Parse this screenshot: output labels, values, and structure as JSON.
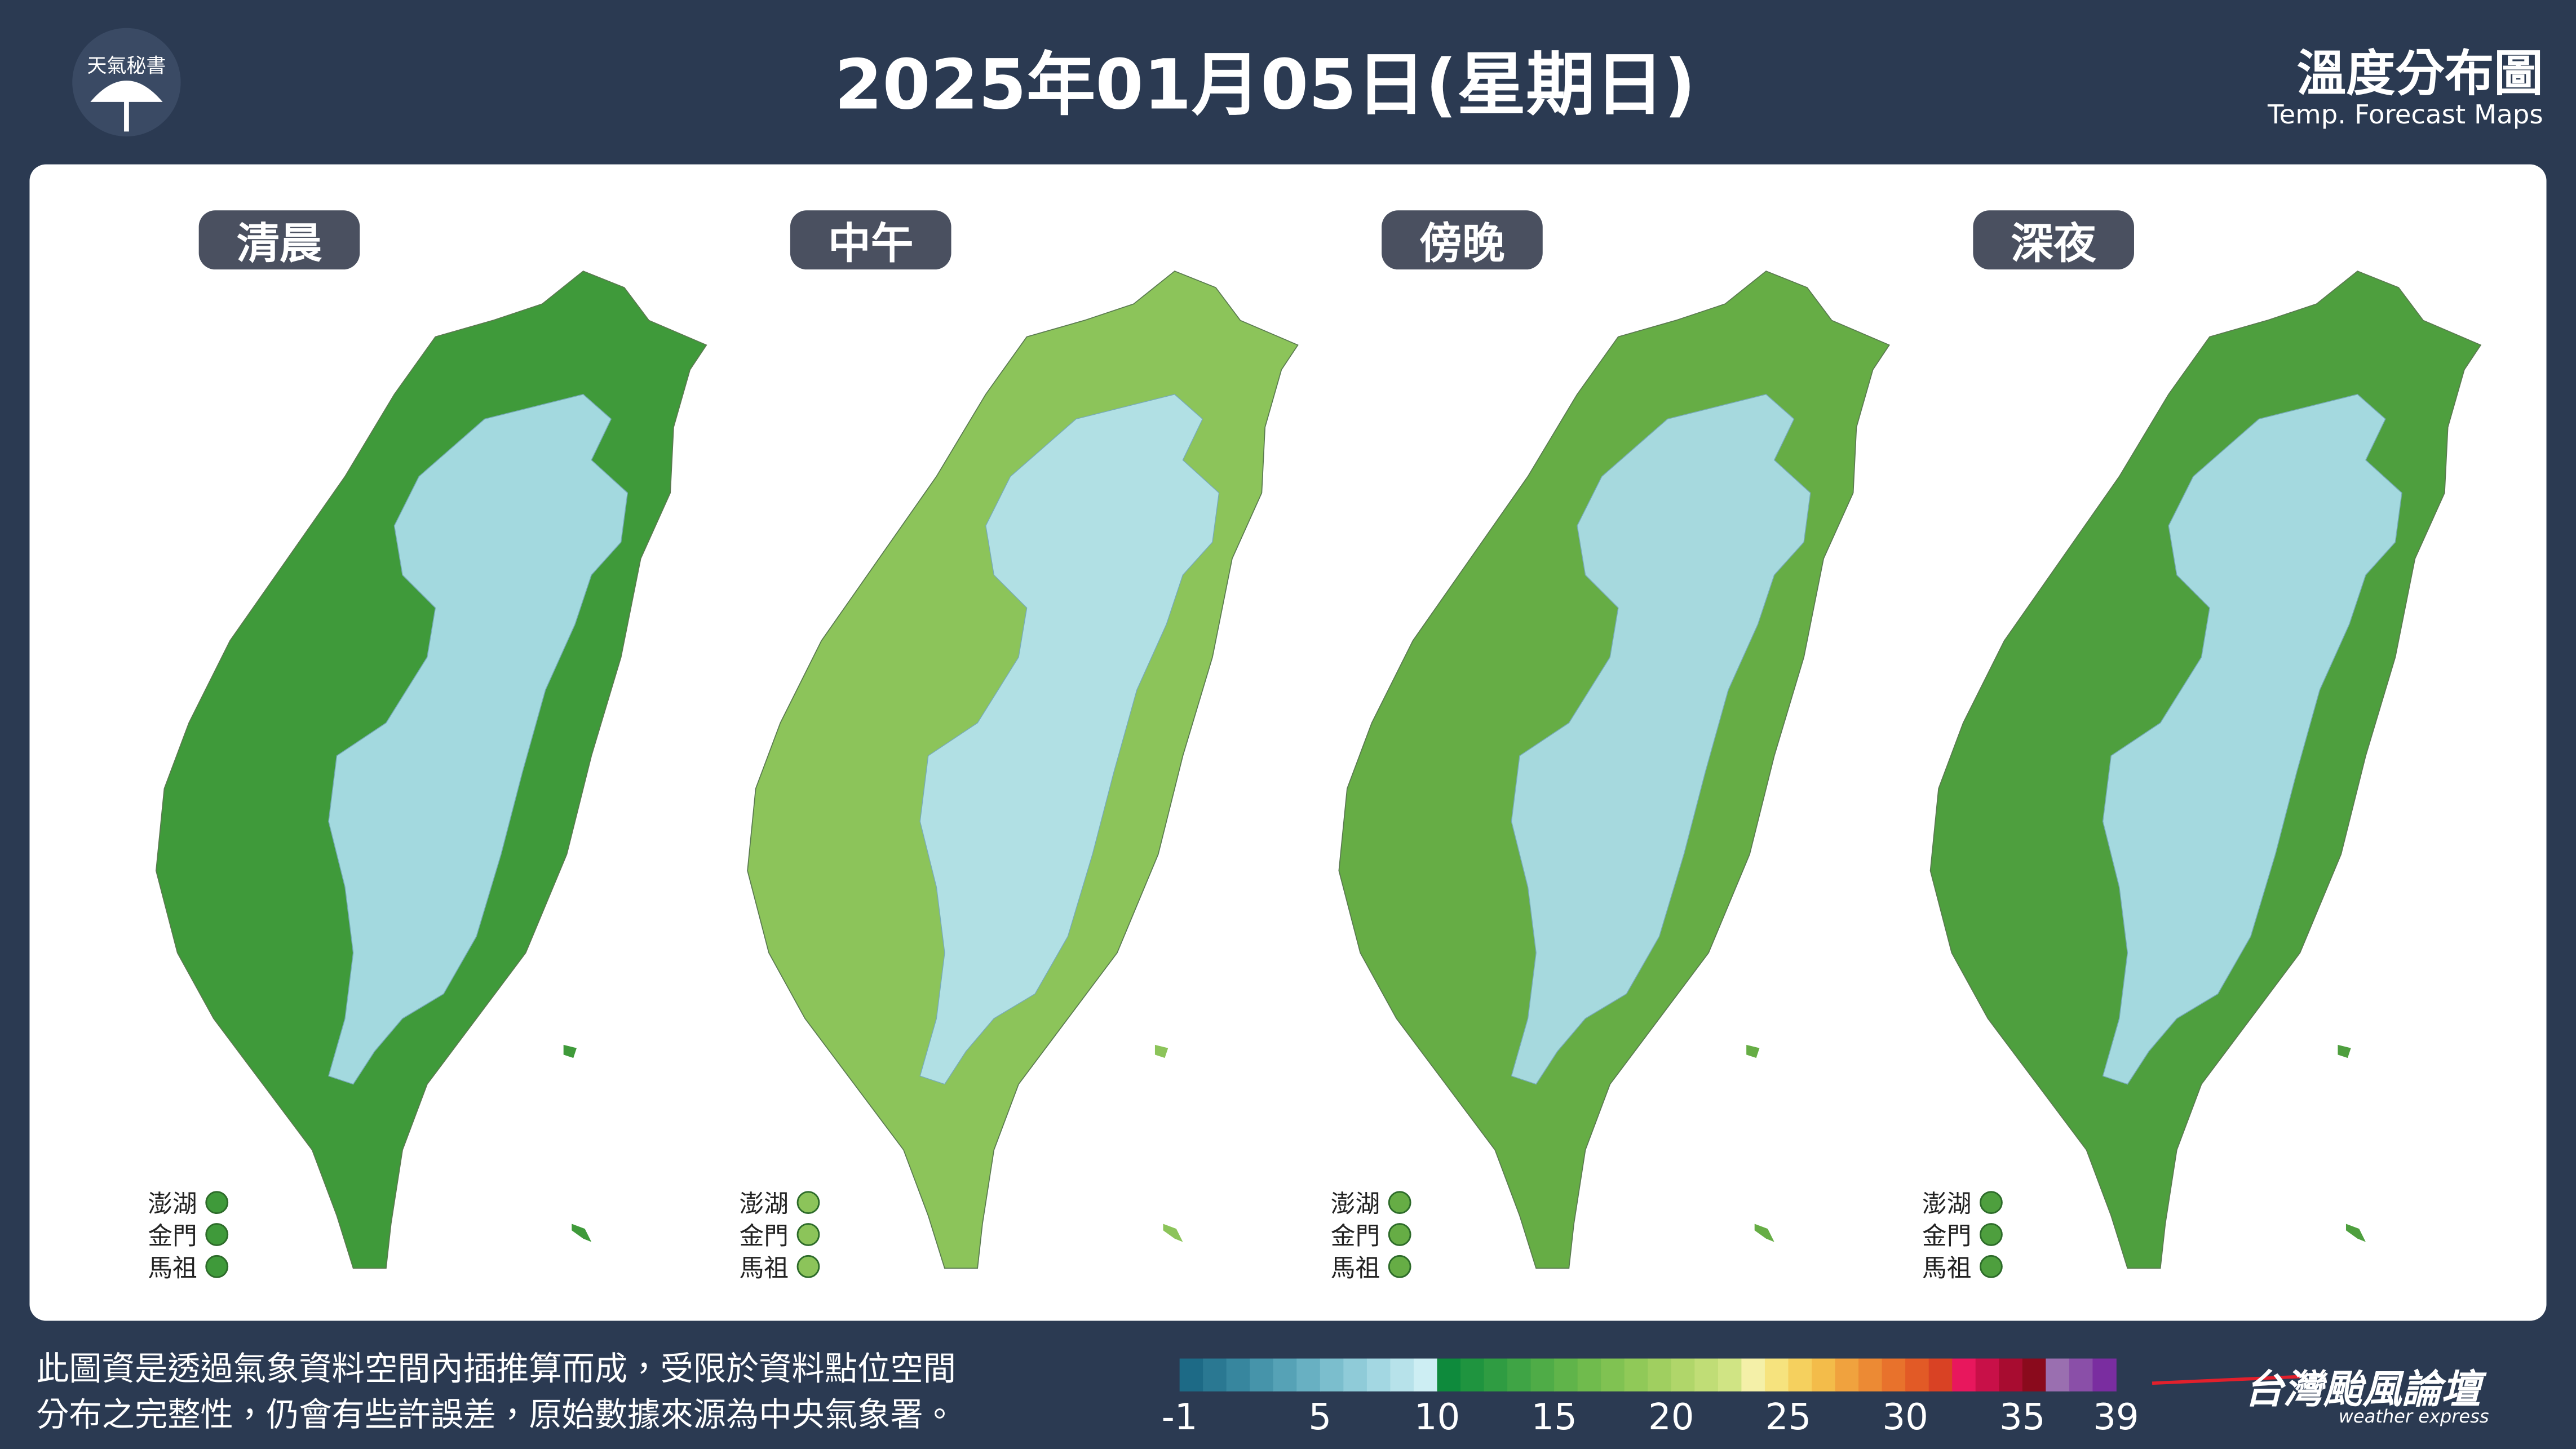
{
  "header": {
    "logo_text": "天氣秘書",
    "title": "2025年01月05日(星期日)",
    "brand_title": "溫度分布圖",
    "brand_subtitle": "Temp. Forecast Maps"
  },
  "panels": [
    {
      "label": "清晨",
      "islands": [
        "澎湖",
        "金門",
        "馬祖"
      ]
    },
    {
      "label": "中午",
      "islands": [
        "澎湖",
        "金門",
        "馬祖"
      ]
    },
    {
      "label": "傍晚",
      "islands": [
        "澎湖",
        "金門",
        "馬祖"
      ]
    },
    {
      "label": "深夜",
      "islands": [
        "澎湖",
        "金門",
        "馬祖"
      ]
    }
  ],
  "footer": {
    "note_lines": [
      "此圖資是透過氣象資料空間內插推算而成，受限於資料點位空間",
      "分布之完整性，仍會有些許誤差，原始數據來源為中央氣象署。"
    ],
    "colorbar": {
      "range": [
        -1,
        39
      ],
      "ticks": [
        -1,
        5,
        10,
        15,
        20,
        25,
        30,
        35,
        39
      ],
      "colors": [
        "#1d6a86",
        "#2a7892",
        "#37869e",
        "#4694aa",
        "#56a2b6",
        "#68b0c2",
        "#7bbecd",
        "#8fcbd8",
        "#a3d7e2",
        "#b7e2ea",
        "#cdeef3",
        "#0e8a3c",
        "#1f943f",
        "#2f9c42",
        "#3fa445",
        "#4fac47",
        "#60b44a",
        "#70bb4d",
        "#80c252",
        "#90c958",
        "#a0cf60",
        "#b0d66a",
        "#c0dd76",
        "#d0e484",
        "#f4f0a8",
        "#f6e37e",
        "#f5d05e",
        "#f3bc4a",
        "#f0a23e",
        "#ec8a34",
        "#e8722c",
        "#e25a26",
        "#d94224",
        "#e8175d",
        "#c81048",
        "#a80c30",
        "#8a0a1c",
        "#9a6fb0",
        "#8a4fa8",
        "#7a2da0"
      ]
    },
    "source": "台灣颱風論壇",
    "source_sub": "weather express"
  }
}
